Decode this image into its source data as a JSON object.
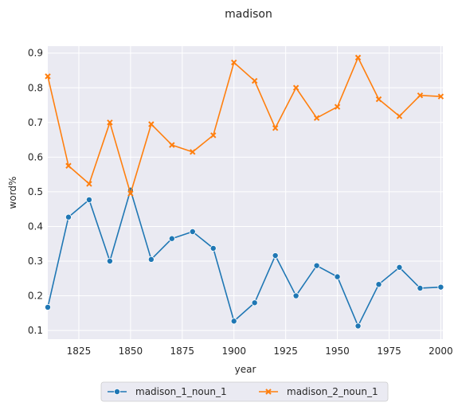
{
  "chart_data": {
    "type": "line",
    "title": "madison",
    "xlabel": "year",
    "ylabel": "word%",
    "xlim": [
      1810,
      2001
    ],
    "ylim": [
      0.075,
      0.92
    ],
    "xticks": [
      1825,
      1850,
      1875,
      1900,
      1925,
      1950,
      1975,
      2000
    ],
    "xtick_labels": [
      "1825",
      "1850",
      "1875",
      "1900",
      "1925",
      "1950",
      "1975",
      "2000"
    ],
    "yticks": [
      0.1,
      0.2,
      0.3,
      0.4,
      0.5,
      0.6,
      0.7,
      0.8,
      0.9
    ],
    "ytick_labels": [
      "0.1",
      "0.2",
      "0.3",
      "0.4",
      "0.5",
      "0.6",
      "0.7",
      "0.8",
      "0.9"
    ],
    "grid": true,
    "legend_position": "bottom-center",
    "x": [
      1810,
      1820,
      1830,
      1840,
      1850,
      1860,
      1870,
      1880,
      1890,
      1900,
      1910,
      1920,
      1930,
      1940,
      1950,
      1960,
      1970,
      1980,
      1990,
      2000
    ],
    "series": [
      {
        "name": "madison_1_noun_1",
        "color": "#1f77b4",
        "marker": "circle",
        "values": [
          0.167,
          0.427,
          0.477,
          0.3,
          0.505,
          0.305,
          0.365,
          0.385,
          0.337,
          0.127,
          0.18,
          0.316,
          0.2,
          0.287,
          0.255,
          0.113,
          0.233,
          0.282,
          0.222,
          0.225
        ]
      },
      {
        "name": "madison_2_noun_1",
        "color": "#ff7f0e",
        "marker": "x",
        "values": [
          0.833,
          0.575,
          0.523,
          0.7,
          0.495,
          0.695,
          0.635,
          0.615,
          0.663,
          0.873,
          0.82,
          0.684,
          0.8,
          0.713,
          0.745,
          0.887,
          0.767,
          0.718,
          0.778,
          0.775
        ]
      }
    ]
  }
}
